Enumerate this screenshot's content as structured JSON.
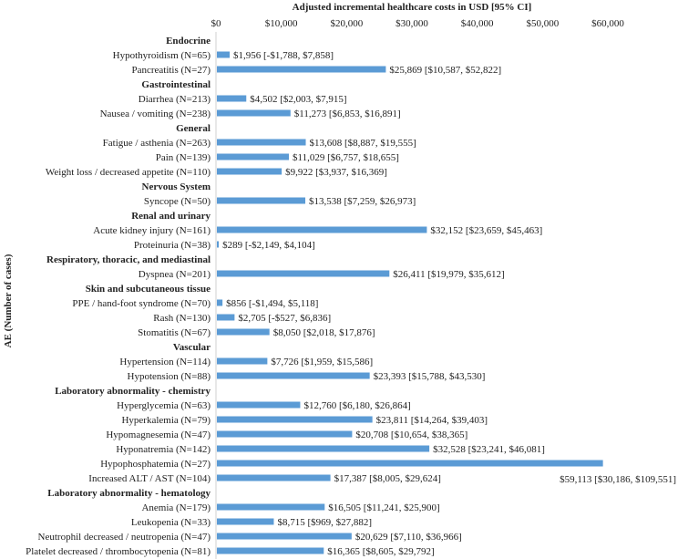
{
  "chart_data": {
    "type": "bar",
    "orientation": "horizontal",
    "title": "Adjusted incremental healthcare costs in USD [95% CI]",
    "xlabel": "Adjusted incremental healthcare costs in USD [95% CI]",
    "ylabel": "AE (Number of cases)",
    "xlim": [
      0,
      60000
    ],
    "xticks": [
      "$0",
      "$10,000",
      "$20,000",
      "$30,000",
      "$40,000",
      "$50,000",
      "$60,000"
    ],
    "xtick_values": [
      0,
      10000,
      20000,
      30000,
      40000,
      50000,
      60000
    ],
    "axis_position": "top",
    "grid": false,
    "bar_color": "#5b9bd5",
    "rows": [
      {
        "type": "group",
        "label": "Endocrine"
      },
      {
        "type": "bar",
        "label": "Hypothyroidism (N=65)",
        "value": 1956,
        "data_label": "$1,956 [-$1,788, $7,858]"
      },
      {
        "type": "bar",
        "label": "Pancreatitis (N=27)",
        "value": 25869,
        "data_label": "$25,869 [$10,587, $52,822]"
      },
      {
        "type": "group",
        "label": "Gastrointestinal"
      },
      {
        "type": "bar",
        "label": "Diarrhea (N=213)",
        "value": 4502,
        "data_label": "$4,502 [$2,003, $7,915]"
      },
      {
        "type": "bar",
        "label": "Nausea / vomiting (N=238)",
        "value": 11273,
        "data_label": "$11,273 [$6,853, $16,891]"
      },
      {
        "type": "group",
        "label": "General"
      },
      {
        "type": "bar",
        "label": "Fatigue / asthenia (N=263)",
        "value": 13608,
        "data_label": "$13,608 [$8,887, $19,555]"
      },
      {
        "type": "bar",
        "label": "Pain (N=139)",
        "value": 11029,
        "data_label": "$11,029 [$6,757, $18,655]"
      },
      {
        "type": "bar",
        "label": "Weight loss / decreased appetite (N=110)",
        "value": 9922,
        "data_label": "$9,922 [$3,937, $16,369]"
      },
      {
        "type": "group",
        "label": "Nervous System"
      },
      {
        "type": "bar",
        "label": "Syncope (N=50)",
        "value": 13538,
        "data_label": "$13,538 [$7,259, $26,973]"
      },
      {
        "type": "group",
        "label": "Renal and urinary"
      },
      {
        "type": "bar",
        "label": "Acute kidney injury (N=161)",
        "value": 32152,
        "data_label": "$32,152 [$23,659, $45,463]"
      },
      {
        "type": "bar",
        "label": "Proteinuria (N=38)",
        "value": 289,
        "data_label": "$289 [-$2,149, $4,104]"
      },
      {
        "type": "group",
        "label": "Respiratory, thoracic, and mediastinal"
      },
      {
        "type": "bar",
        "label": "Dyspnea (N=201)",
        "value": 26411,
        "data_label": "$26,411 [$19,979, $35,612]"
      },
      {
        "type": "group",
        "label": "Skin and subcutaneous tissue"
      },
      {
        "type": "bar",
        "label": "PPE / hand-foot syndrome (N=70)",
        "value": 856,
        "data_label": "$856 [-$1,494, $5,118]"
      },
      {
        "type": "bar",
        "label": "Rash (N=130)",
        "value": 2705,
        "data_label": "$2,705 [-$527, $6,836]"
      },
      {
        "type": "bar",
        "label": "Stomatitis (N=67)",
        "value": 8050,
        "data_label": "$8,050 [$2,018, $17,876]"
      },
      {
        "type": "group",
        "label": "Vascular"
      },
      {
        "type": "bar",
        "label": "Hypertension (N=114)",
        "value": 7726,
        "data_label": "$7,726 [$1,959, $15,586]"
      },
      {
        "type": "bar",
        "label": "Hypotension (N=88)",
        "value": 23393,
        "data_label": "$23,393 [$15,788, $43,530]"
      },
      {
        "type": "group",
        "label": "Laboratory abnormality - chemistry"
      },
      {
        "type": "bar",
        "label": "Hyperglycemia (N=63)",
        "value": 12760,
        "data_label": "$12,760 [$6,180, $26,864]"
      },
      {
        "type": "bar",
        "label": "Hyperkalemia (N=79)",
        "value": 23811,
        "data_label": "$23,811 [$14,264, $39,403]"
      },
      {
        "type": "bar",
        "label": "Hypomagnesemia (N=47)",
        "value": 20708,
        "data_label": "$20,708 [$10,654, $38,365]"
      },
      {
        "type": "bar",
        "label": "Hyponatremia (N=142)",
        "value": 32528,
        "data_label": "$32,528 [$23,241, $46,081]"
      },
      {
        "type": "bar",
        "label": "Hypophosphatemia (N=27)",
        "value": 59113,
        "data_label": "$59,113 [$30,186, $109,551]"
      },
      {
        "type": "bar",
        "label": "Increased ALT / AST (N=104)",
        "value": 17387,
        "data_label": "$17,387 [$8,005, $29,624]"
      },
      {
        "type": "group",
        "label": "Laboratory abnormality - hematology"
      },
      {
        "type": "bar",
        "label": "Anemia (N=179)",
        "value": 16505,
        "data_label": "$16,505 [$11,241, $25,900]"
      },
      {
        "type": "bar",
        "label": "Leukopenia (N=33)",
        "value": 8715,
        "data_label": "$8,715 [$969, $27,882]"
      },
      {
        "type": "bar",
        "label": "Neutrophil decreased / neutropenia (N=47)",
        "value": 20629,
        "data_label": "$20,629 [$7,110, $36,966]"
      },
      {
        "type": "bar",
        "label": "Platelet decreased / thrombocytopenia (N=81)",
        "value": 16365,
        "data_label": "$16,365 [$8,605, $29,792]"
      }
    ]
  }
}
